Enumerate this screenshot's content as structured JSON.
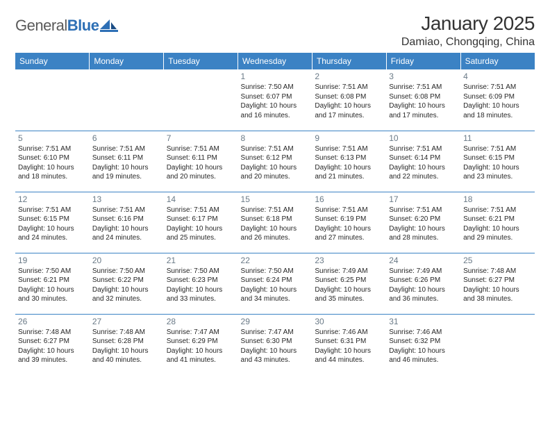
{
  "logo": {
    "word1": "General",
    "word2": "Blue"
  },
  "header": {
    "title": "January 2025",
    "location": "Damiao, Chongqing, China"
  },
  "colors": {
    "header_bg": "#3b82c4",
    "header_text": "#ffffff",
    "rule": "#3b82c4",
    "daynum": "#6a7a87",
    "body_text": "#262626",
    "logo_gray": "#5a5a5a",
    "logo_blue": "#2d6fb5",
    "background": "#ffffff"
  },
  "typography": {
    "title_fontsize": 28,
    "location_fontsize": 16,
    "header_cell_fontsize": 12,
    "daynum_fontsize": 12,
    "detail_fontsize": 10
  },
  "weekdays": [
    "Sunday",
    "Monday",
    "Tuesday",
    "Wednesday",
    "Thursday",
    "Friday",
    "Saturday"
  ],
  "grid": {
    "rows": 5,
    "cols": 7
  },
  "days": {
    "1": {
      "sunrise": "7:50 AM",
      "sunset": "6:07 PM",
      "daylight": "10 hours and 16 minutes."
    },
    "2": {
      "sunrise": "7:51 AM",
      "sunset": "6:08 PM",
      "daylight": "10 hours and 17 minutes."
    },
    "3": {
      "sunrise": "7:51 AM",
      "sunset": "6:08 PM",
      "daylight": "10 hours and 17 minutes."
    },
    "4": {
      "sunrise": "7:51 AM",
      "sunset": "6:09 PM",
      "daylight": "10 hours and 18 minutes."
    },
    "5": {
      "sunrise": "7:51 AM",
      "sunset": "6:10 PM",
      "daylight": "10 hours and 18 minutes."
    },
    "6": {
      "sunrise": "7:51 AM",
      "sunset": "6:11 PM",
      "daylight": "10 hours and 19 minutes."
    },
    "7": {
      "sunrise": "7:51 AM",
      "sunset": "6:11 PM",
      "daylight": "10 hours and 20 minutes."
    },
    "8": {
      "sunrise": "7:51 AM",
      "sunset": "6:12 PM",
      "daylight": "10 hours and 20 minutes."
    },
    "9": {
      "sunrise": "7:51 AM",
      "sunset": "6:13 PM",
      "daylight": "10 hours and 21 minutes."
    },
    "10": {
      "sunrise": "7:51 AM",
      "sunset": "6:14 PM",
      "daylight": "10 hours and 22 minutes."
    },
    "11": {
      "sunrise": "7:51 AM",
      "sunset": "6:15 PM",
      "daylight": "10 hours and 23 minutes."
    },
    "12": {
      "sunrise": "7:51 AM",
      "sunset": "6:15 PM",
      "daylight": "10 hours and 24 minutes."
    },
    "13": {
      "sunrise": "7:51 AM",
      "sunset": "6:16 PM",
      "daylight": "10 hours and 24 minutes."
    },
    "14": {
      "sunrise": "7:51 AM",
      "sunset": "6:17 PM",
      "daylight": "10 hours and 25 minutes."
    },
    "15": {
      "sunrise": "7:51 AM",
      "sunset": "6:18 PM",
      "daylight": "10 hours and 26 minutes."
    },
    "16": {
      "sunrise": "7:51 AM",
      "sunset": "6:19 PM",
      "daylight": "10 hours and 27 minutes."
    },
    "17": {
      "sunrise": "7:51 AM",
      "sunset": "6:20 PM",
      "daylight": "10 hours and 28 minutes."
    },
    "18": {
      "sunrise": "7:51 AM",
      "sunset": "6:21 PM",
      "daylight": "10 hours and 29 minutes."
    },
    "19": {
      "sunrise": "7:50 AM",
      "sunset": "6:21 PM",
      "daylight": "10 hours and 30 minutes."
    },
    "20": {
      "sunrise": "7:50 AM",
      "sunset": "6:22 PM",
      "daylight": "10 hours and 32 minutes."
    },
    "21": {
      "sunrise": "7:50 AM",
      "sunset": "6:23 PM",
      "daylight": "10 hours and 33 minutes."
    },
    "22": {
      "sunrise": "7:50 AM",
      "sunset": "6:24 PM",
      "daylight": "10 hours and 34 minutes."
    },
    "23": {
      "sunrise": "7:49 AM",
      "sunset": "6:25 PM",
      "daylight": "10 hours and 35 minutes."
    },
    "24": {
      "sunrise": "7:49 AM",
      "sunset": "6:26 PM",
      "daylight": "10 hours and 36 minutes."
    },
    "25": {
      "sunrise": "7:48 AM",
      "sunset": "6:27 PM",
      "daylight": "10 hours and 38 minutes."
    },
    "26": {
      "sunrise": "7:48 AM",
      "sunset": "6:27 PM",
      "daylight": "10 hours and 39 minutes."
    },
    "27": {
      "sunrise": "7:48 AM",
      "sunset": "6:28 PM",
      "daylight": "10 hours and 40 minutes."
    },
    "28": {
      "sunrise": "7:47 AM",
      "sunset": "6:29 PM",
      "daylight": "10 hours and 41 minutes."
    },
    "29": {
      "sunrise": "7:47 AM",
      "sunset": "6:30 PM",
      "daylight": "10 hours and 43 minutes."
    },
    "30": {
      "sunrise": "7:46 AM",
      "sunset": "6:31 PM",
      "daylight": "10 hours and 44 minutes."
    },
    "31": {
      "sunrise": "7:46 AM",
      "sunset": "6:32 PM",
      "daylight": "10 hours and 46 minutes."
    }
  },
  "layout": [
    [
      null,
      null,
      null,
      "1",
      "2",
      "3",
      "4"
    ],
    [
      "5",
      "6",
      "7",
      "8",
      "9",
      "10",
      "11"
    ],
    [
      "12",
      "13",
      "14",
      "15",
      "16",
      "17",
      "18"
    ],
    [
      "19",
      "20",
      "21",
      "22",
      "23",
      "24",
      "25"
    ],
    [
      "26",
      "27",
      "28",
      "29",
      "30",
      "31",
      null
    ]
  ],
  "labels": {
    "sunrise": "Sunrise:",
    "sunset": "Sunset:",
    "daylight": "Daylight:"
  }
}
